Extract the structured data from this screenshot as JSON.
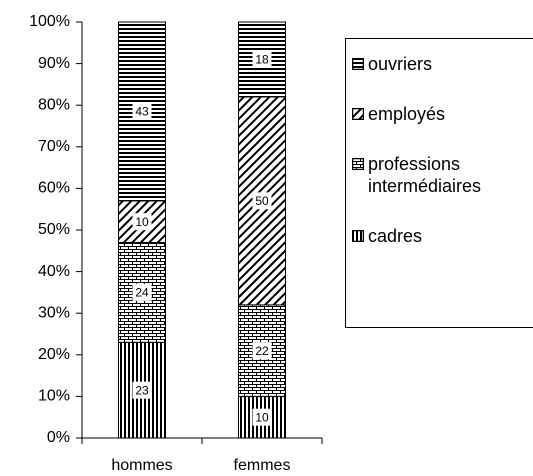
{
  "chart_data": {
    "type": "bar",
    "stacked": true,
    "categories": [
      "hommes",
      "femmes"
    ],
    "series": [
      {
        "name": "cadres",
        "color": "#000000",
        "pattern": "vertical",
        "values": [
          23,
          10
        ]
      },
      {
        "name": "professions intermédiaires",
        "color": "#000000",
        "pattern": "brick",
        "values": [
          24,
          22
        ]
      },
      {
        "name": "employés",
        "color": "#000000",
        "pattern": "diagonal",
        "values": [
          10,
          50
        ]
      },
      {
        "name": "ouvriers",
        "color": "#000000",
        "pattern": "horizontal",
        "values": [
          43,
          18
        ]
      }
    ],
    "ylim": [
      0,
      100
    ],
    "yticks": [
      {
        "value": 0,
        "label": "0%"
      },
      {
        "value": 10,
        "label": "10%"
      },
      {
        "value": 20,
        "label": "20%"
      },
      {
        "value": 30,
        "label": "30%"
      },
      {
        "value": 40,
        "label": "40%"
      },
      {
        "value": 50,
        "label": "50%"
      },
      {
        "value": 60,
        "label": "60%"
      },
      {
        "value": 70,
        "label": "70%"
      },
      {
        "value": 80,
        "label": "80%"
      },
      {
        "value": 90,
        "label": "90%"
      },
      {
        "value": 100,
        "label": "100%"
      }
    ],
    "legend": "right"
  }
}
